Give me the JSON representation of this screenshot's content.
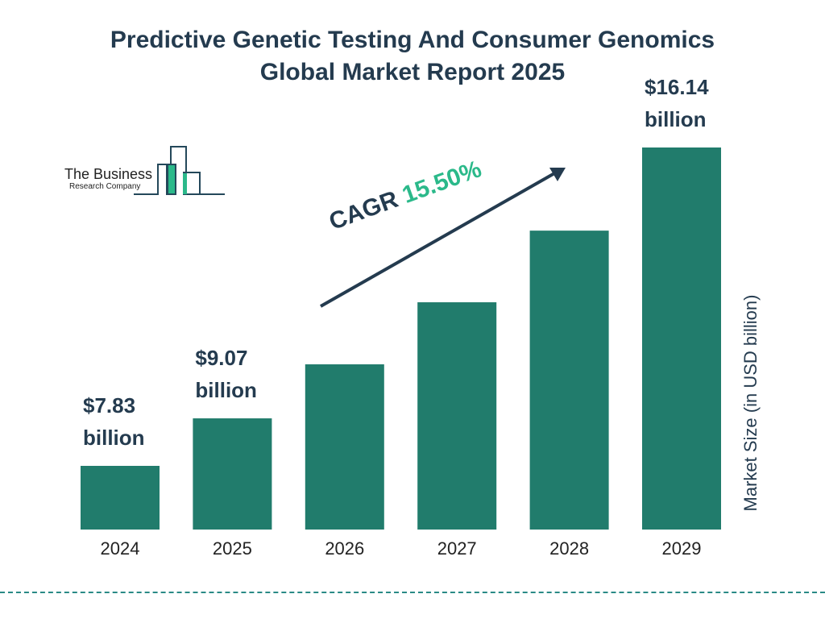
{
  "title_line1": "Predictive Genetic Testing And Consumer Genomics",
  "title_line2": "Global Market Report 2025",
  "logo": {
    "line1": "The Business",
    "line2": "Research Company"
  },
  "cagr": {
    "label": "CAGR",
    "value": "15.50%"
  },
  "colors": {
    "bar": "#217c6c",
    "text": "#243b4f",
    "accent": "#2bb98a",
    "dash": "#2a8a86"
  },
  "chart_data": {
    "type": "bar",
    "categories": [
      "2024",
      "2025",
      "2026",
      "2027",
      "2028",
      "2029"
    ],
    "values": [
      7.83,
      9.07,
      10.48,
      12.1,
      13.97,
      16.14
    ],
    "data_labels": [
      [
        "$7.83",
        "billion"
      ],
      [
        "$9.07",
        "billion"
      ],
      null,
      null,
      null,
      [
        "$16.14",
        "billion"
      ]
    ],
    "ylabel": "Market Size (in USD billion)",
    "xlabel": "",
    "grid": false,
    "legend": "none"
  }
}
